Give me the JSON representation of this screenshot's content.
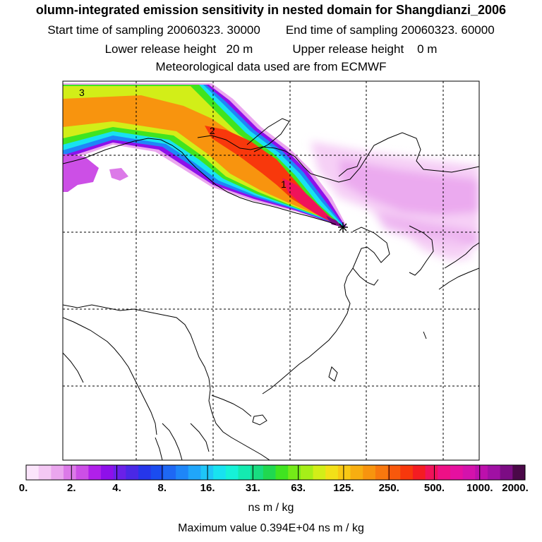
{
  "title": "olumn-integrated emission sensitivity in nested domain for Shangdianzi_2006",
  "sampling": {
    "start": "Start time of sampling 20060323. 30000",
    "end": "End time of sampling 20060323. 60000"
  },
  "release": {
    "lower": "Lower release height   20 m",
    "upper": "Upper release height    0 m"
  },
  "meteo": "Meteorological data used are from ECMWF",
  "map": {
    "contour_labels": [
      "3",
      "2",
      "1"
    ],
    "receptor": "Shangdianzi"
  },
  "colorbar": {
    "tick_labels": [
      "0.",
      "2.",
      "4.",
      "8.",
      "16.",
      "31.",
      "63.",
      "125.",
      "250.",
      "500.",
      "1000.",
      "2000."
    ],
    "colors": [
      "#fbe5fb",
      "#f4c8f4",
      "#eaa6ee",
      "#dc7ae8",
      "#cc4fe6",
      "#b020ea",
      "#8e10ea",
      "#6a20e8",
      "#4a28e6",
      "#2636ea",
      "#1a4cf0",
      "#1e68f4",
      "#1e86f8",
      "#20a6fa",
      "#1ec6f8",
      "#18e2f0",
      "#16f2d8",
      "#14eab0",
      "#18dc80",
      "#20d850",
      "#40e420",
      "#74ea18",
      "#a6ee18",
      "#d2ee18",
      "#f2e018",
      "#f8c814",
      "#f8ae10",
      "#f8940e",
      "#f8780e",
      "#f8580c",
      "#f8380c",
      "#f41c22",
      "#f0125a",
      "#ee1086",
      "#e610a0",
      "#d412ac",
      "#bc10ac",
      "#a010a4",
      "#7c0c84",
      "#4a0848"
    ],
    "unit": "ns m / kg"
  },
  "max_value": "Maximum value  0.394E+04 ns m / kg"
}
